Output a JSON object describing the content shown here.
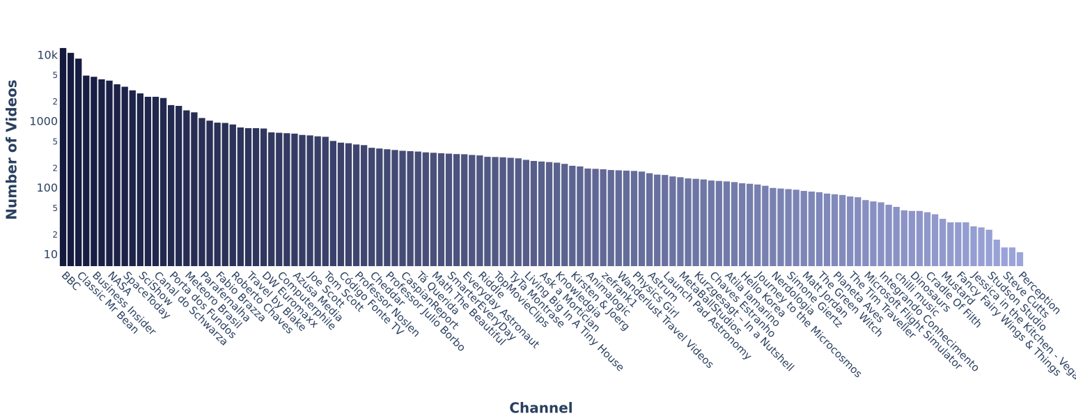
{
  "chart_data": {
    "type": "bar",
    "x_label": "Channel",
    "y_label": "Number of Videos",
    "log_y": true,
    "grid": false,
    "colorscale": [
      "#141a3e",
      "#9ca5d9"
    ],
    "ylim": [
      6.8,
      15000
    ],
    "yticks": [
      10,
      {
        "value": 20,
        "label": "2"
      },
      {
        "value": 50,
        "label": "5"
      },
      100,
      {
        "value": 200,
        "label": "2"
      },
      {
        "value": 500,
        "label": "5"
      },
      1000,
      {
        "value": 2000,
        "label": "2"
      },
      {
        "value": 5000,
        "label": "5"
      },
      {
        "value": 10000,
        "label": "10k"
      }
    ],
    "categories": [
      "BBC",
      null,
      "Classic Mr Bean",
      null,
      "Business Insider",
      null,
      "NASA",
      null,
      "SpaceToday",
      null,
      "SciShow",
      null,
      "Canal do Schwarza",
      null,
      "Porta dos Fundos",
      null,
      "Meteoro Brasil",
      null,
      "Parafernalha",
      null,
      "Fabio Brazza",
      null,
      "Roberto Chaves",
      null,
      "Travel by Blake",
      null,
      "DW Euromaxx",
      null,
      "Computerphile",
      null,
      "Azusa Media",
      null,
      "Joe Scott",
      null,
      "Tom Scott",
      null,
      "Código Fonte TV",
      null,
      "Professor Noslen",
      null,
      "Cheddar",
      null,
      "Professor Julio Borbo",
      null,
      "CaspianReport",
      null,
      "Tá Querida",
      null,
      "Math The Beautiful",
      null,
      "SmarterEveryDay",
      null,
      "Everyday Astronaut",
      null,
      "Riddle",
      null,
      "TopMovieClips",
      null,
      "TyTa Montrase",
      null,
      "Living Big In A Tiny House",
      null,
      "Ask a Mortician",
      null,
      "Knowledgia",
      null,
      "Kirsten & Joerg",
      null,
      "Animalogic",
      null,
      "zefrank1",
      null,
      "Wanderlust Travel Videos",
      null,
      "Physics Girl",
      null,
      "Astrum",
      null,
      "Launch Pad Astronomy",
      null,
      "MetaBallStudios",
      null,
      "Kurzgesagt – In a Nutshell",
      null,
      "Chaves Estranho",
      null,
      "Atila Iamarino",
      null,
      "Hello Korea",
      null,
      "Journey to the Microcosmos",
      null,
      "Nerdologia",
      null,
      "Simone Giertz",
      null,
      "Matt Jordan",
      null,
      "The Green Witch",
      null,
      "Planeta Aves",
      null,
      "The Tim Traveller",
      null,
      "Microsoft Flight Simulator",
      null,
      "Integrando Conhecimento",
      null,
      "chilli music",
      null,
      "Dinosaurs",
      null,
      "Cradle Of Filth",
      null,
      "Mustard",
      null,
      "Fancy Fairy Wings & Things",
      null,
      "Jessica in the Kitchen - Vegan",
      null,
      "Studson Studio",
      null,
      "Steve Cutts",
      null,
      "Perception"
    ],
    "values": [
      13000,
      11000,
      9000,
      5000,
      4800,
      4400,
      4200,
      3700,
      3400,
      3000,
      2700,
      2400,
      2400,
      2300,
      1800,
      1750,
      1500,
      1400,
      1150,
      1050,
      980,
      970,
      920,
      830,
      810,
      810,
      800,
      700,
      690,
      680,
      670,
      640,
      630,
      610,
      600,
      520,
      490,
      480,
      460,
      450,
      410,
      400,
      390,
      380,
      370,
      365,
      360,
      350,
      345,
      340,
      335,
      330,
      328,
      320,
      315,
      300,
      298,
      295,
      290,
      285,
      270,
      260,
      255,
      250,
      245,
      235,
      220,
      215,
      200,
      198,
      195,
      190,
      188,
      186,
      184,
      180,
      170,
      162,
      160,
      152,
      148,
      142,
      140,
      137,
      132,
      130,
      128,
      125,
      120,
      118,
      115,
      110,
      102,
      100,
      98,
      96,
      92,
      90,
      88,
      84,
      82,
      80,
      76,
      74,
      67,
      64,
      62,
      57,
      53,
      47,
      46,
      46,
      44,
      41,
      35,
      31,
      31,
      31,
      27,
      26,
      24,
      17,
      13,
      13,
      11
    ]
  }
}
